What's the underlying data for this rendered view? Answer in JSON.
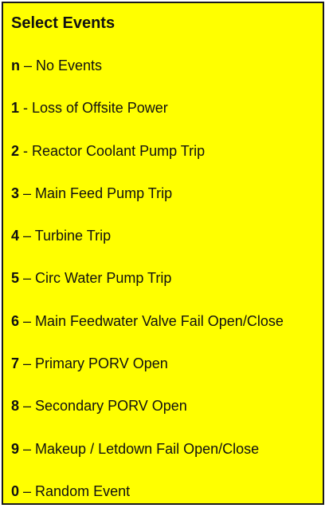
{
  "panel": {
    "title": "Select Events",
    "background": "#ffff00",
    "items": [
      {
        "key": "n",
        "sep": " – ",
        "label": "No Events"
      },
      {
        "key": "1",
        "sep": " - ",
        "label": "Loss of Offsite Power"
      },
      {
        "key": "2",
        "sep": " - ",
        "label": "Reactor Coolant Pump Trip"
      },
      {
        "key": "3",
        "sep": " – ",
        "label": "Main Feed Pump Trip"
      },
      {
        "key": "4",
        "sep": " – ",
        "label": "Turbine Trip"
      },
      {
        "key": "5",
        "sep": " – ",
        "label": "Circ Water Pump Trip"
      },
      {
        "key": "6",
        "sep": " – ",
        "label": "Main Feedwater Valve Fail Open/Close"
      },
      {
        "key": "7",
        "sep": " – ",
        "label": "Primary PORV Open"
      },
      {
        "key": "8",
        "sep": " – ",
        "label": "Secondary PORV Open"
      },
      {
        "key": "9",
        "sep": " – ",
        "label": "Makeup / Letdown Fail Open/Close"
      },
      {
        "key": "0",
        "sep": " – ",
        "label": "Random Event"
      }
    ]
  }
}
